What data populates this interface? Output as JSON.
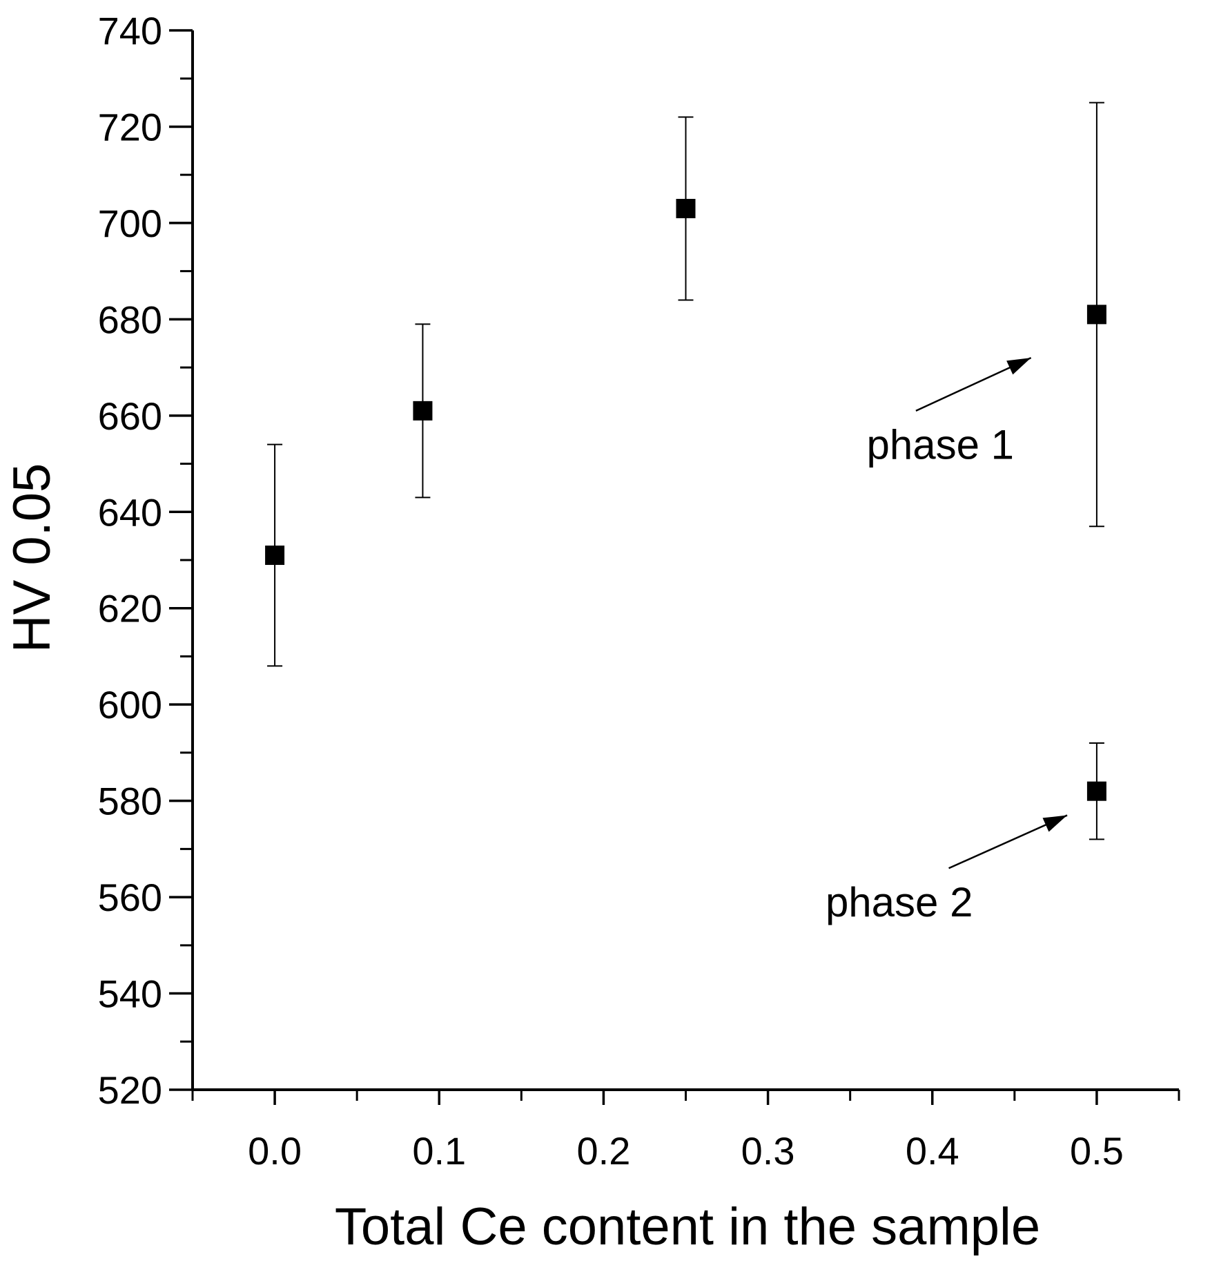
{
  "chart_data": {
    "type": "scatter",
    "title": "",
    "xlabel": "Total Ce content in the sample",
    "ylabel": "HV 0.05",
    "xlim": [
      -0.05,
      0.55
    ],
    "ylim": [
      520,
      740
    ],
    "x_ticks": [
      0.0,
      0.1,
      0.2,
      0.3,
      0.4,
      0.5
    ],
    "x_tick_labels": [
      "0.0",
      "0.1",
      "0.2",
      "0.3",
      "0.4",
      "0.5"
    ],
    "y_ticks": [
      520,
      540,
      560,
      580,
      600,
      620,
      640,
      660,
      680,
      700,
      720,
      740
    ],
    "y_tick_labels": [
      "520",
      "540",
      "560",
      "580",
      "600",
      "620",
      "640",
      "660",
      "680",
      "700",
      "720",
      "740"
    ],
    "grid": false,
    "marker": "square",
    "color": "#000000",
    "points": [
      {
        "x": 0.0,
        "y": 631,
        "err_low": 608,
        "err_high": 654
      },
      {
        "x": 0.09,
        "y": 661,
        "err_low": 643,
        "err_high": 679
      },
      {
        "x": 0.25,
        "y": 703,
        "err_low": 684,
        "err_high": 722
      },
      {
        "x": 0.5,
        "y": 681,
        "err_low": 637,
        "err_high": 725
      },
      {
        "x": 0.5,
        "y": 582,
        "err_low": 572,
        "err_high": 592
      }
    ],
    "annotations": [
      {
        "text": "phase 1",
        "text_at": [
          0.36,
          651
        ],
        "arrow_from": [
          0.39,
          661
        ],
        "arrow_to": [
          0.46,
          672
        ]
      },
      {
        "text": "phase 2",
        "text_at": [
          0.335,
          556
        ],
        "arrow_from": [
          0.41,
          566
        ],
        "arrow_to": [
          0.482,
          577
        ]
      }
    ]
  }
}
